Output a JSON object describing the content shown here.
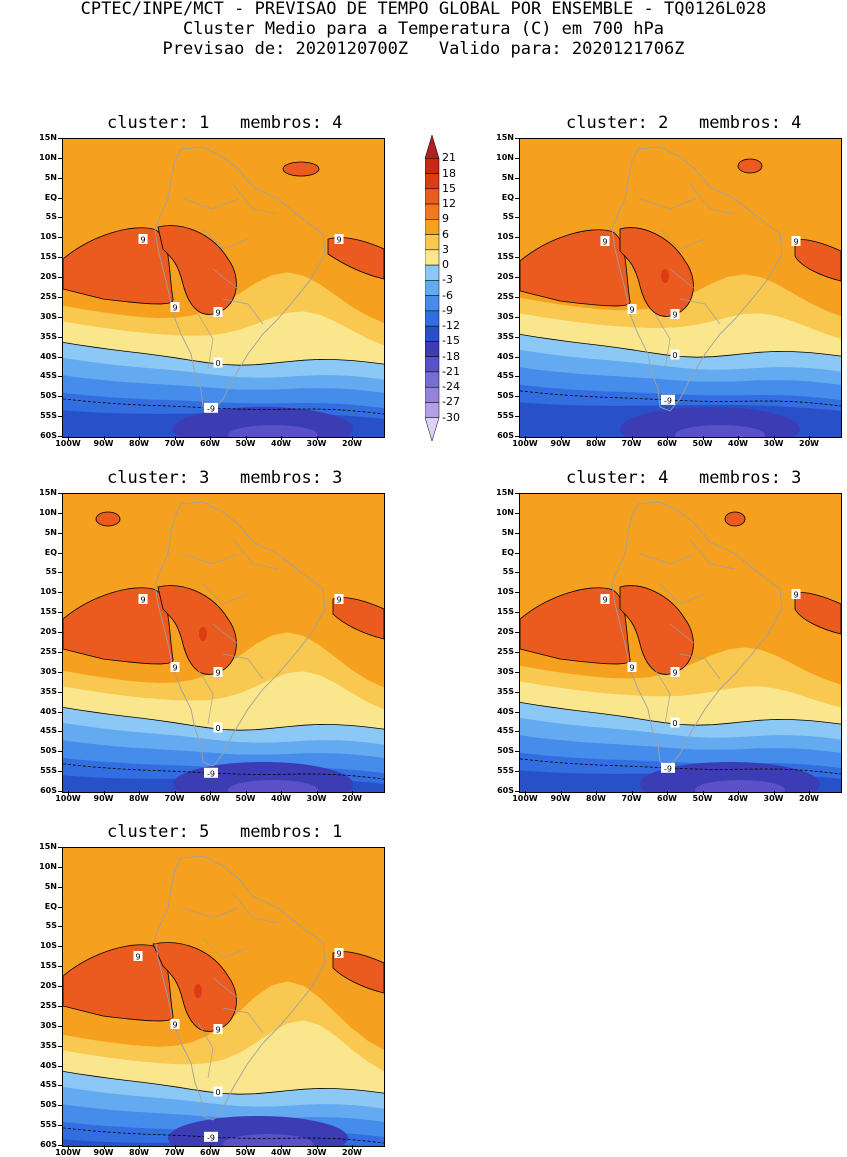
{
  "header": {
    "line1": "CPTEC/INPE/MCT - PREVISAO DE TEMPO GLOBAL POR ENSEMBLE - TQ0126L028",
    "line2": "Cluster Medio para a Temperatura (C) em 700 hPa",
    "line3": "Previsao de: 2020120700Z   Valido para: 2020121706Z"
  },
  "lat_labels": [
    "15N",
    "10N",
    "5N",
    "EQ",
    "5S",
    "10S",
    "15S",
    "20S",
    "25S",
    "30S",
    "35S",
    "40S",
    "45S",
    "50S",
    "55S",
    "60S"
  ],
  "lon_labels": [
    "100W",
    "90W",
    "80W",
    "70W",
    "60W",
    "50W",
    "40W",
    "30W",
    "20W"
  ],
  "panels": [
    {
      "title": "cluster: 1   membros: 4"
    },
    {
      "title": "cluster: 2   membros: 4"
    },
    {
      "title": "cluster: 3   membros: 3"
    },
    {
      "title": "cluster: 4   membros: 3"
    },
    {
      "title": "cluster: 5   membros: 1"
    }
  ],
  "colorbar": {
    "levels": [
      "21",
      "18",
      "15",
      "12",
      "9",
      "6",
      "3",
      "0",
      "-3",
      "-6",
      "-9",
      "-12",
      "-15",
      "-18",
      "-21",
      "-24",
      "-27",
      "-30"
    ],
    "colors": [
      "#b41e1e",
      "#c82814",
      "#dc3c14",
      "#eb5a1e",
      "#f0781e",
      "#f5a01e",
      "#f8c850",
      "#fae68c",
      "#8cc8f5",
      "#64aaf0",
      "#468cea",
      "#326ee0",
      "#2850c8",
      "#3c3cb4",
      "#5a50c8",
      "#786ed2",
      "#9682dc",
      "#b4a0e6",
      "#dcd2f5"
    ]
  },
  "contour_labels": {
    "c9": "9",
    "c0": "0",
    "cm9": "-9"
  }
}
